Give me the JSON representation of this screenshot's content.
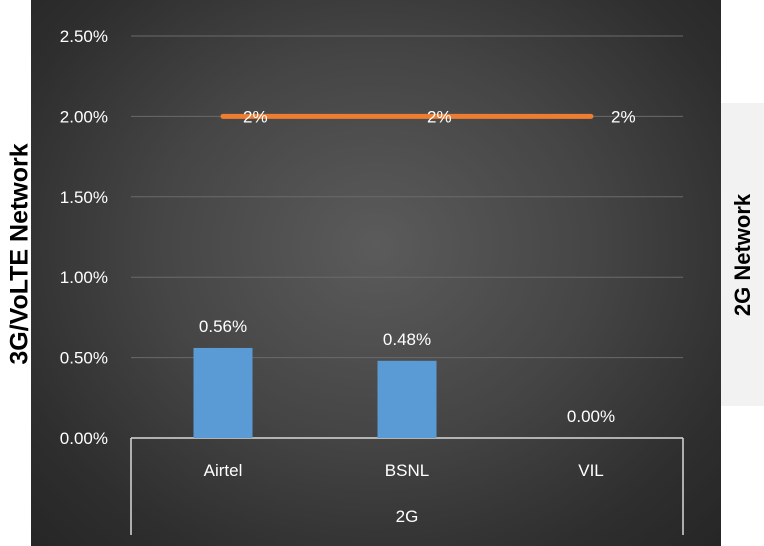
{
  "chart_data": {
    "type": "bar",
    "categories": [
      "Airtel",
      "BSNL",
      "VIL"
    ],
    "group_label": "2G",
    "series": [
      {
        "name": "2G Network",
        "kind": "bar",
        "values": [
          0.56,
          0.48,
          0.0
        ],
        "labels": [
          "0.56%",
          "0.48%",
          "0.00%"
        ],
        "color": "#5b9bd5"
      },
      {
        "name": "3G/VoLTE Network",
        "kind": "line",
        "values": [
          2.0,
          2.0,
          2.0
        ],
        "labels": [
          "2%",
          "2%",
          "2%"
        ],
        "color": "#ed7d31"
      }
    ],
    "ylim": [
      0,
      2.5
    ],
    "yticks": [
      "0.00%",
      "0.50%",
      "1.00%",
      "1.50%",
      "2.00%",
      "2.50%"
    ],
    "ylabel_left": "3G/VoLTE  Network",
    "ylabel_right": "2G Network",
    "grid": true
  }
}
